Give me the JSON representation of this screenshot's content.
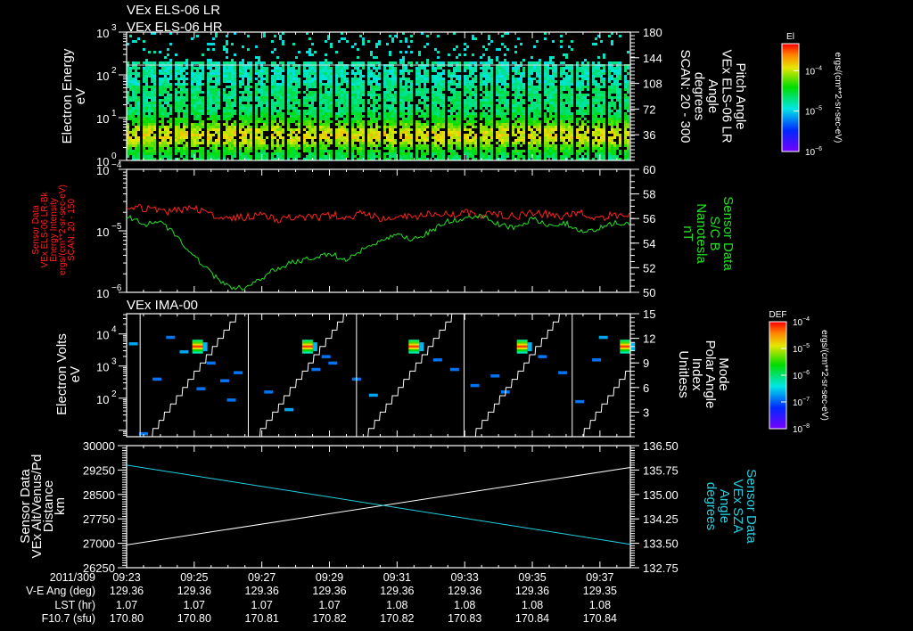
{
  "titles": {
    "panel1_line1": "VEx ELS-06 LR",
    "panel1_line2": "VEx ELS-06 HR",
    "panel3": "VEx IMA-00"
  },
  "colors": {
    "red": "#ff2020",
    "green": "#20e020",
    "cyan": "#20d0e0",
    "white": "#ffffff"
  },
  "labels": {
    "p1_left": [
      "Electron Energy",
      "eV"
    ],
    "p1_right": [
      "Pitch Angle",
      "VEx ELS-06 LR",
      "Angle",
      "degrees",
      "SCAN: 20 - 300"
    ],
    "p2_left": [
      "Sensor Data",
      "VEx ELS-06 LR-Bk",
      "Energy Intensity",
      "ergs/(cm**2-sr-sec-eV)",
      "SCAN: 20 - 150"
    ],
    "p2_right": [
      "Sensor Data",
      "S/C B",
      "Nanotesla",
      "nT"
    ],
    "p3_left": [
      "Electron Volts",
      "eV"
    ],
    "p3_right": [
      "Mode",
      "Polar Angle",
      "Index",
      "Unitless"
    ],
    "p4_left": [
      "Sensor Data",
      "VEx Alt/Venus/Pd",
      "Distance",
      "km"
    ],
    "p4_right": [
      "Sensor Data",
      "VEx SZA",
      "Angle",
      "degrees"
    ]
  },
  "colorbars": [
    {
      "title": "El",
      "ticks": [
        "-4",
        "-5",
        "-6"
      ],
      "units": "ergs/(cm**2-sr-sec-eV)"
    },
    {
      "title": "DEF",
      "ticks": [
        "-4",
        "-5",
        "-6",
        "-7",
        "-8"
      ],
      "units": "ergs/(cm**2-sr-sec-eV)"
    }
  ],
  "footer": {
    "row_labels": [
      "2011/309",
      "V-E Ang (deg)",
      "LST (hr)",
      "F10.7 (sfu)"
    ],
    "times": [
      "09:23",
      "09:25",
      "09:27",
      "09:29",
      "09:31",
      "09:33",
      "09:35",
      "09:37"
    ],
    "ve_ang": [
      "129.36",
      "129.36",
      "129.36",
      "129.36",
      "129.36",
      "129.36",
      "129.36",
      "129.35"
    ],
    "lst": [
      "1.07",
      "1.07",
      "1.07",
      "1.07",
      "1.08",
      "1.08",
      "1.08",
      "1.08"
    ],
    "f107": [
      "170.80",
      "170.80",
      "170.81",
      "170.82",
      "170.82",
      "170.83",
      "170.84",
      "170.84"
    ]
  },
  "chart_data": [
    {
      "type": "heatmap",
      "title": "VEx ELS-06 LR / VEx ELS-06 HR",
      "ylabel": "Electron Energy (eV)",
      "ylim_log10": [
        0,
        3
      ],
      "y_ticks": [
        "0",
        "1",
        "2",
        "3"
      ],
      "y2label": "Pitch Angle (degrees)",
      "y2lim": [
        0,
        180
      ],
      "y2_ticks": [
        "36",
        "72",
        "108",
        "144",
        "180"
      ],
      "xlim_minutes_after_0923": [
        0,
        14.9
      ],
      "sweep_period_minutes": 0.47,
      "sparse_above_eV": 200,
      "dense_band_eV": [
        2,
        8
      ]
    },
    {
      "type": "line",
      "ylabel": "Energy Intensity",
      "ylim_log10": [
        -6,
        -4
      ],
      "y_ticks": [
        "-6",
        "-5",
        "-4"
      ],
      "y2label": "S/C B (nT)",
      "y2lim": [
        50,
        60
      ],
      "y2_ticks": [
        "50",
        "52",
        "54",
        "56",
        "58",
        "60"
      ],
      "t": [
        0,
        0.5,
        1,
        1.5,
        2,
        2.5,
        3,
        3.5,
        4,
        4.5,
        5,
        5.5,
        6,
        6.5,
        7,
        7.5,
        8,
        8.5,
        9,
        9.5,
        10,
        10.5,
        11,
        11.5,
        12,
        12.5,
        13,
        13.5,
        14,
        14.5,
        14.9
      ],
      "series": [
        {
          "name": "ELS-06 LR-Bk intensity (log10)",
          "axis": "left",
          "color": "red",
          "values": [
            -4.68,
            -4.62,
            -4.7,
            -4.66,
            -4.64,
            -4.72,
            -4.8,
            -4.78,
            -4.74,
            -4.82,
            -4.76,
            -4.8,
            -4.74,
            -4.78,
            -4.72,
            -4.8,
            -4.76,
            -4.78,
            -4.72,
            -4.74,
            -4.7,
            -4.76,
            -4.72,
            -4.78,
            -4.7,
            -4.74,
            -4.76,
            -4.72,
            -4.78,
            -4.74,
            -4.76
          ]
        },
        {
          "name": "S/C B (nT)",
          "axis": "right",
          "color": "green",
          "values": [
            56.2,
            55.5,
            55.8,
            54.5,
            53,
            51.5,
            50.5,
            50.3,
            51.2,
            52,
            52.5,
            52.8,
            53.2,
            52.6,
            53.5,
            54.2,
            54.6,
            54.3,
            55,
            55.8,
            56,
            56.3,
            55.5,
            55.2,
            56,
            55.4,
            55.6,
            54.8,
            55.2,
            55.7,
            55.5
          ]
        }
      ]
    },
    {
      "type": "heatmap",
      "title": "VEx IMA-00",
      "ylabel": "Electron Volts (eV)",
      "ylim_log10": [
        0.8,
        4.63
      ],
      "y_ticks": [
        "2",
        "3",
        "4"
      ],
      "y2label": "Mode Polar Angle Index",
      "y2lim": [
        0,
        15
      ],
      "y2_ticks": [
        "3",
        "6",
        "9",
        "12",
        "15"
      ],
      "blobs": [
        [
          2.1,
          3.6,
          0.9
        ],
        [
          5.35,
          3.6,
          0.9
        ],
        [
          8.5,
          3.6,
          0.9
        ],
        [
          11.7,
          3.6,
          0.9
        ],
        [
          14.75,
          3.6,
          0.85
        ],
        [
          0.5,
          0.9,
          0.2
        ],
        [
          0.2,
          3.7,
          0.25
        ],
        [
          1.3,
          3.9,
          0.2
        ],
        [
          1.7,
          3.45,
          0.25
        ],
        [
          2.5,
          3.1,
          0.2
        ],
        [
          2.9,
          2.55,
          0.2
        ],
        [
          3.1,
          1.95,
          0.2
        ],
        [
          2.2,
          2.3,
          0.2
        ],
        [
          3.3,
          2.8,
          0.2
        ],
        [
          0.9,
          2.6,
          0.2
        ],
        [
          4.2,
          2.2,
          0.2
        ],
        [
          4.8,
          1.65,
          0.25
        ],
        [
          5.9,
          3.3,
          0.2
        ],
        [
          6.1,
          3.1,
          0.2
        ],
        [
          6.8,
          2.6,
          0.2
        ],
        [
          7.3,
          2.1,
          0.25
        ],
        [
          5.6,
          2.9,
          0.2
        ],
        [
          9.2,
          3.2,
          0.2
        ],
        [
          9.7,
          2.9,
          0.2
        ],
        [
          10.3,
          2.4,
          0.2
        ],
        [
          10.9,
          2.7,
          0.2
        ],
        [
          11.2,
          2.2,
          0.2
        ],
        [
          12.3,
          3.3,
          0.2
        ],
        [
          12.9,
          2.8,
          0.2
        ],
        [
          13.4,
          1.9,
          0.2
        ],
        [
          14.1,
          3.9,
          0.25
        ],
        [
          13.9,
          3.2,
          0.2
        ]
      ],
      "mode_period_minutes": 3.19,
      "mode_first_reset_minutes": 0.4
    },
    {
      "type": "line",
      "ylabel": "VEx Alt/Venus/Pd Distance (km)",
      "ylim": [
        26250,
        30000
      ],
      "y_ticks": [
        "26250",
        "27000",
        "27750",
        "28500",
        "29250",
        "30000"
      ],
      "y2label": "VEx SZA Angle (degrees)",
      "y2lim": [
        132.75,
        136.5
      ],
      "y2_ticks": [
        "132.75",
        "133.50",
        "134.25",
        "135.00",
        "135.75",
        "136.50"
      ],
      "t": [
        0,
        14.9
      ],
      "series": [
        {
          "name": "Altitude (km)",
          "axis": "left",
          "color": "white",
          "values": [
            26950,
            29330
          ]
        },
        {
          "name": "SZA (deg)",
          "axis": "right",
          "color": "cyan",
          "values": [
            135.9,
            133.47
          ]
        }
      ]
    }
  ]
}
